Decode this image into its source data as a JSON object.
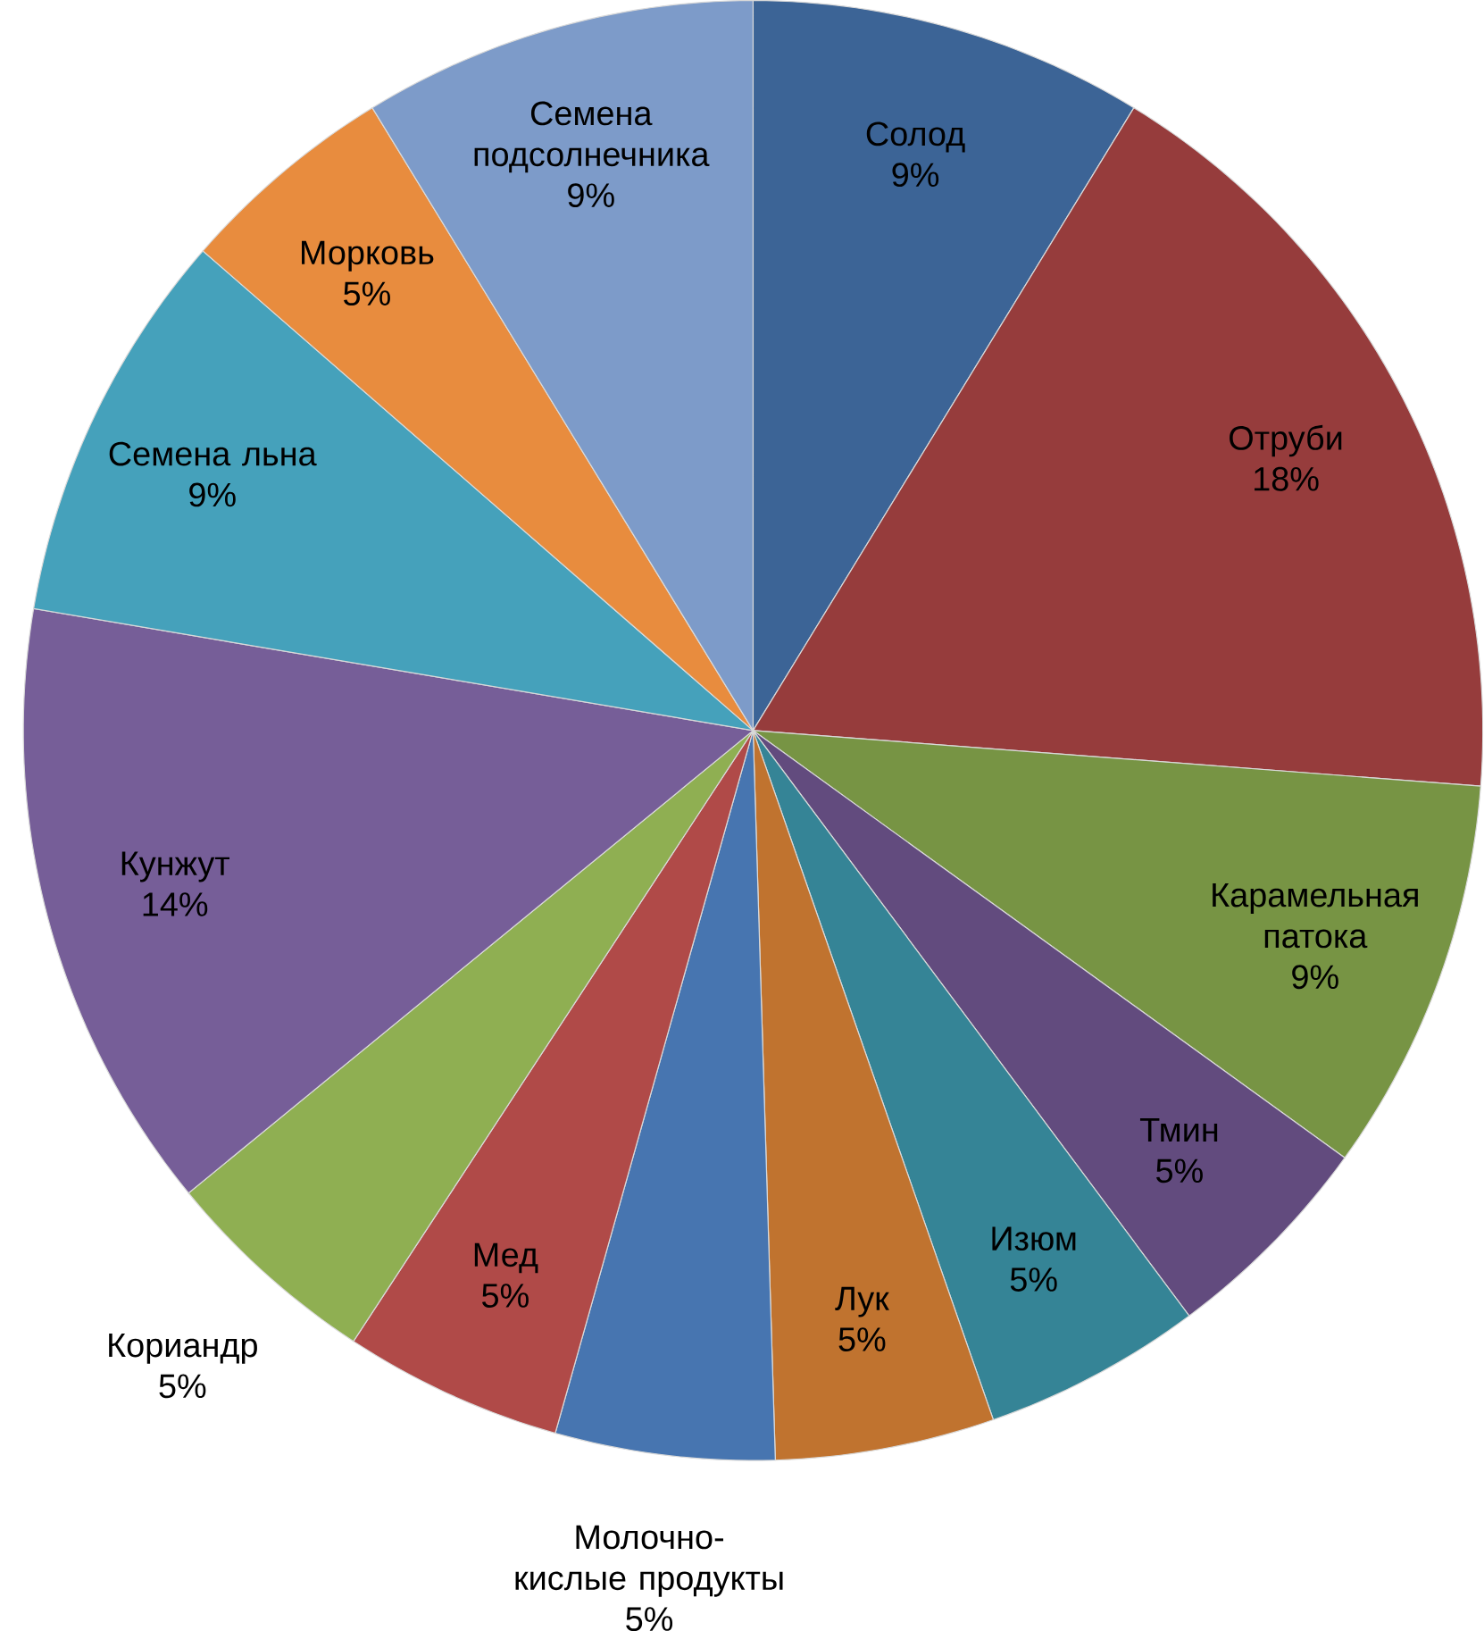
{
  "chart_data": {
    "type": "pie",
    "categories": [
      "Солод",
      "Отруби",
      "Карамельная патока",
      "Тмин",
      "Изюм",
      "Лук",
      "Молочно-кислые продукты",
      "Мед",
      "Кориандр",
      "Кунжут",
      "Семена льна",
      "Морковь",
      "Семена подсолнечника"
    ],
    "values": [
      9,
      18,
      9,
      5,
      5,
      5,
      5,
      5,
      5,
      14,
      9,
      5,
      9
    ],
    "value_labels": [
      "9%",
      "18%",
      "9%",
      "5%",
      "5%",
      "5%",
      "5%",
      "5%",
      "5%",
      "14%",
      "9%",
      "5%",
      "9%"
    ],
    "colors": [
      "#3c6496",
      "#963c3c",
      "#779444",
      "#624b7e",
      "#358496",
      "#c0732f",
      "#4775b0",
      "#b04a48",
      "#8faf52",
      "#765e98",
      "#45a1bb",
      "#e88c3e",
      "#7d9bc9"
    ]
  }
}
